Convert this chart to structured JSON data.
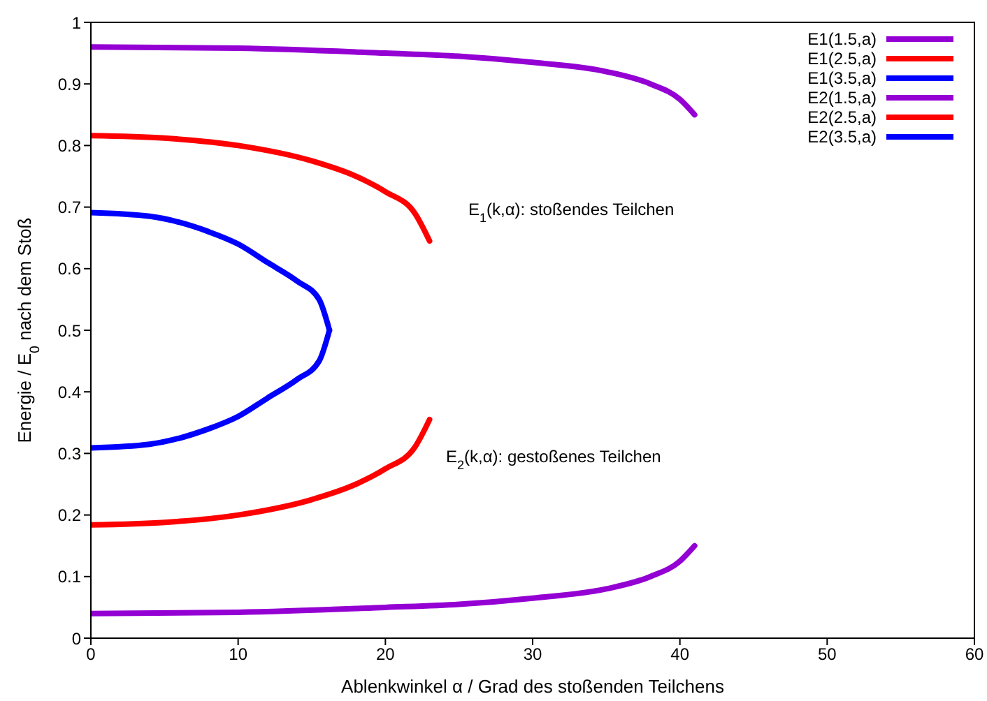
{
  "chart_data": {
    "type": "line",
    "xlabel": "Ablenkwinkel α / Grad des stoßenden Teilchens",
    "ylabel": "Energie / E$_{0}$ nach dem Stoß",
    "xlim": [
      0,
      60
    ],
    "xticks": [
      0,
      10,
      20,
      30,
      40,
      50,
      60
    ],
    "ylim": [
      0,
      1
    ],
    "yticks": [
      0,
      0.1,
      0.2,
      0.3,
      0.4,
      0.5,
      0.6,
      0.7,
      0.8,
      0.9,
      1
    ],
    "grid": false,
    "legend": "top right",
    "line_style": "solid",
    "marker": "none",
    "annotations": [
      "E$_{1}$(k,α): stoßendes Teilchen",
      "E$_{2}$(k,α): gestoßenes Teilchen"
    ],
    "series": [
      {
        "name": "E1(1.5,a)",
        "color": "#9400d3",
        "x": [
          0,
          10,
          20,
          25,
          30,
          35,
          38,
          40,
          41
        ],
        "values": [
          0.96,
          0.958,
          0.95,
          0.945,
          0.935,
          0.92,
          0.9,
          0.875,
          0.85
        ]
      },
      {
        "name": "E1(2.5,a)",
        "color": "#ff0000",
        "x": [
          0,
          5,
          10,
          15,
          18,
          20,
          22,
          23
        ],
        "values": [
          0.816,
          0.812,
          0.8,
          0.775,
          0.75,
          0.725,
          0.69,
          0.645
        ]
      },
      {
        "name": "E1(3.5,a)",
        "color": "#0000ff",
        "x": [
          0,
          4,
          8,
          10,
          12,
          14,
          15.5,
          16.2
        ],
        "values": [
          0.691,
          0.685,
          0.66,
          0.64,
          0.61,
          0.58,
          0.55,
          0.5
        ]
      },
      {
        "name": "E2(1.5,a)",
        "color": "#9400d3",
        "x": [
          0,
          10,
          20,
          25,
          30,
          35,
          38,
          40,
          41
        ],
        "values": [
          0.04,
          0.042,
          0.05,
          0.055,
          0.065,
          0.08,
          0.1,
          0.125,
          0.15
        ]
      },
      {
        "name": "E2(2.5,a)",
        "color": "#ff0000",
        "x": [
          0,
          5,
          10,
          15,
          18,
          20,
          22,
          23
        ],
        "values": [
          0.184,
          0.188,
          0.2,
          0.225,
          0.25,
          0.275,
          0.31,
          0.355
        ]
      },
      {
        "name": "E2(3.5,a)",
        "color": "#0000ff",
        "x": [
          0,
          4,
          8,
          10,
          12,
          14,
          15.5,
          16.2
        ],
        "values": [
          0.309,
          0.315,
          0.34,
          0.36,
          0.39,
          0.42,
          0.45,
          0.5
        ]
      }
    ]
  }
}
